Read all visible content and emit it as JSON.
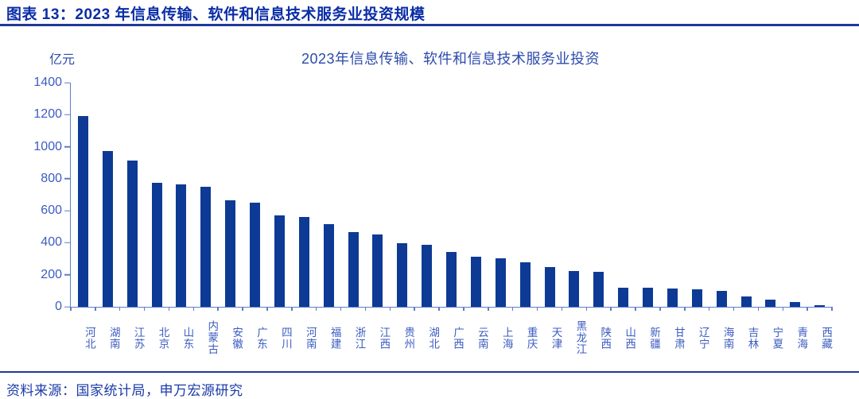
{
  "page": {
    "header": "图表 13：2023 年信息传输、软件和信息技术服务业投资规模",
    "footer": "资料来源：国家统计局，申万宏源研究"
  },
  "colors": {
    "header_text": "#0a2da6",
    "rule": "#203898",
    "bar": "#0d3a94",
    "axis": "#5b7ec9",
    "label_text": "#2c4aac",
    "tick_text": "#3c5cc0",
    "footer_text": "#1b3aa8"
  },
  "chart_data": {
    "type": "bar",
    "title": "2023年信息传输、软件和信息技术服务业投资",
    "unit_label": "亿元",
    "xlabel": "",
    "ylabel": "亿元",
    "ylim": [
      0,
      1400
    ],
    "ytick_step": 200,
    "grid": false,
    "legend": false,
    "categories": [
      "河北",
      "湖南",
      "江苏",
      "北京",
      "山东",
      "内蒙古",
      "安徽",
      "广东",
      "四川",
      "河南",
      "福建",
      "浙江",
      "江西",
      "贵州",
      "湖北",
      "广西",
      "云南",
      "上海",
      "重庆",
      "天津",
      "黑龙江",
      "陕西",
      "山西",
      "新疆",
      "甘肃",
      "辽宁",
      "海南",
      "吉林",
      "宁夏",
      "青海",
      "西藏"
    ],
    "values": [
      1190,
      975,
      913,
      775,
      763,
      748,
      663,
      652,
      572,
      560,
      518,
      465,
      450,
      399,
      385,
      343,
      314,
      305,
      276,
      249,
      224,
      219,
      120,
      117,
      114,
      110,
      101,
      65,
      46,
      28,
      8
    ]
  }
}
